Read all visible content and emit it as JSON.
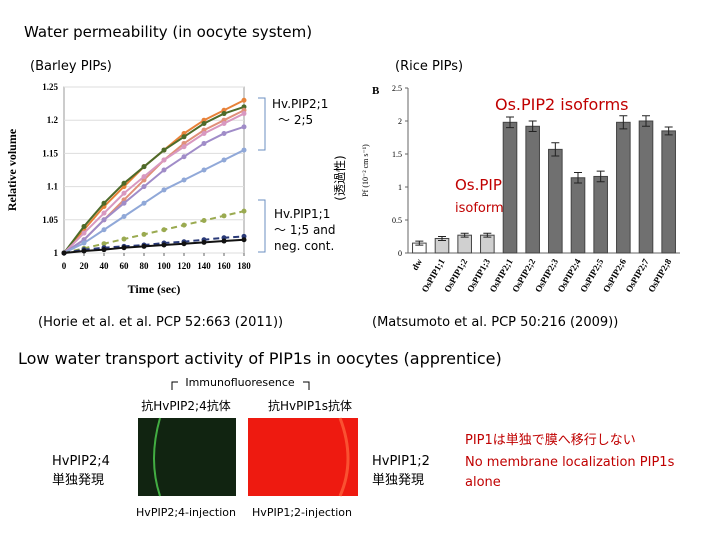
{
  "slide": {
    "title": "Water permeability (in oocyte system)",
    "left_caption": "(Barley PIPs)",
    "right_caption": "(Rice PIPs)",
    "note_pip2": [
      "Hv.PIP2;1",
      "〜  2;5"
    ],
    "note_pip1": [
      "Hv.PIP1;1",
      "〜  1;5 and",
      "neg. cont."
    ],
    "permeability": "(透過性)",
    "rice_pip2": "Os.PIP2  isoforms",
    "rice_pip1": [
      "Os.PIP1",
      "isoforms"
    ],
    "citation_left": "(Horie et al. et al. PCP 52:663 (2011))",
    "citation_right": "(Matsumoto et al. PCP 50:216 (2009))",
    "heading": "Low water transport activity of PIP1s in oocytes (apprentice)",
    "immuno": "Immunofluoresence",
    "antibody_left": "抗HvPIP2;4抗体",
    "antibody_right": "抗HvPIP1s抗体",
    "left_sample": [
      "HvPIP2;4",
      "単独発現"
    ],
    "right_sample": [
      "HvPIP1;2",
      "単独発現"
    ],
    "conclusion_jp": "PIP1は単独で膜へ移行しない",
    "conclusion_en": [
      "No membrane localization PIP1s",
      "alone"
    ],
    "injection_left": "HvPIP2;4-injection",
    "injection_right": "HvPIP1;2-injection"
  },
  "chart_data": [
    {
      "type": "line",
      "xlabel": "Time (sec)",
      "ylabel": "Relative volume",
      "x": [
        0,
        20,
        40,
        60,
        80,
        100,
        120,
        140,
        160,
        180
      ],
      "xlim": [
        0,
        180
      ],
      "xticks": [
        0,
        20,
        40,
        60,
        80,
        100,
        120,
        140,
        160,
        180
      ],
      "ylim": [
        1,
        1.25
      ],
      "yticks": [
        1,
        1.05,
        1.1,
        1.15,
        1.2,
        1.25
      ],
      "series": [
        {
          "color": "#e8823a",
          "values": [
            1,
            1.035,
            1.07,
            1.1,
            1.13,
            1.155,
            1.18,
            1.2,
            1.215,
            1.23
          ]
        },
        {
          "color": "#4d6b2a",
          "values": [
            1,
            1.04,
            1.075,
            1.105,
            1.13,
            1.155,
            1.175,
            1.195,
            1.21,
            1.22
          ]
        },
        {
          "color": "#e0907a",
          "values": [
            1,
            1.02,
            1.05,
            1.08,
            1.11,
            1.14,
            1.165,
            1.185,
            1.2,
            1.215
          ]
        },
        {
          "color": "#d898c0",
          "values": [
            1,
            1.03,
            1.06,
            1.09,
            1.115,
            1.14,
            1.16,
            1.18,
            1.195,
            1.21
          ]
        },
        {
          "color": "#a08cc8",
          "values": [
            1,
            1.02,
            1.05,
            1.075,
            1.1,
            1.125,
            1.145,
            1.165,
            1.18,
            1.19
          ]
        },
        {
          "color": "#90a8d8",
          "values": [
            1,
            1.015,
            1.035,
            1.055,
            1.075,
            1.095,
            1.11,
            1.125,
            1.14,
            1.155
          ]
        },
        {
          "color": "#9aaa50",
          "dashed": true,
          "values": [
            1,
            1.007,
            1.014,
            1.021,
            1.028,
            1.035,
            1.042,
            1.049,
            1.056,
            1.063
          ]
        },
        {
          "color": "#2a3a78",
          "dashed": true,
          "values": [
            1,
            1.005,
            1.008,
            1.01,
            1.012,
            1.015,
            1.017,
            1.02,
            1.023,
            1.025
          ]
        },
        {
          "color": "#111111",
          "values": [
            1,
            1.003,
            1.005,
            1.008,
            1.01,
            1.012,
            1.014,
            1.016,
            1.018,
            1.02
          ]
        }
      ]
    },
    {
      "type": "bar",
      "panel": "B",
      "ylabel": "Pf (10⁻² cm s⁻¹)",
      "categories": [
        "dw",
        "OsPIP1;1",
        "OsPIP1;2",
        "OsPIP1;3",
        "OsPIP2;1",
        "OsPIP2;2",
        "OsPIP2;3",
        "OsPIP2;4",
        "OsPIP2;5",
        "OsPIP2;6",
        "OsPIP2;7",
        "OsPIP2;8"
      ],
      "values": [
        0.15,
        0.22,
        0.27,
        0.27,
        1.98,
        1.92,
        1.57,
        1.14,
        1.16,
        1.98,
        2.0,
        1.85
      ],
      "errors": [
        0.03,
        0.03,
        0.03,
        0.03,
        0.08,
        0.08,
        0.1,
        0.08,
        0.08,
        0.1,
        0.08,
        0.06
      ],
      "colors": [
        "#ffffff",
        "#d0d0d0",
        "#d0d0d0",
        "#d0d0d0",
        "#707070",
        "#707070",
        "#707070",
        "#707070",
        "#707070",
        "#707070",
        "#707070",
        "#707070"
      ],
      "ylim": [
        0,
        2.5
      ],
      "yticks": [
        0,
        0.5,
        1,
        1.5,
        2,
        2.5
      ]
    }
  ]
}
